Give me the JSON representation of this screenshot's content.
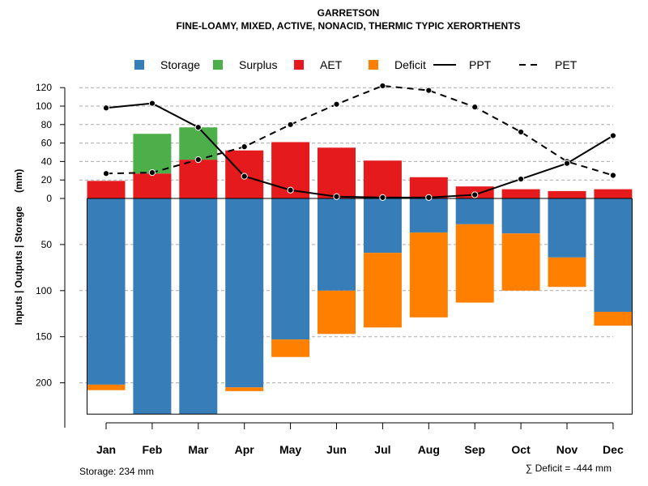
{
  "chart_data": {
    "type": "bar",
    "title": "GARRETSON",
    "subtitle": "FINE-LOAMY, MIXED, ACTIVE, NONACID, THERMIC TYPIC XERORTHENTS",
    "ylabel": "Inputs | Outputs | Storage     (mm)",
    "categories": [
      "Jan",
      "Feb",
      "Mar",
      "Apr",
      "May",
      "Jun",
      "Jul",
      "Aug",
      "Sep",
      "Oct",
      "Nov",
      "Dec"
    ],
    "upper_axis": {
      "range": [
        0,
        130
      ],
      "ticks": [
        0,
        20,
        40,
        60,
        80,
        100,
        120
      ]
    },
    "lower_axis": {
      "range": [
        0,
        240
      ],
      "ticks": [
        50,
        100,
        150,
        200
      ]
    },
    "legend": {
      "position": "top",
      "entries": [
        {
          "label": "Storage",
          "kind": "box",
          "color": "#377EB8"
        },
        {
          "label": "Surplus",
          "kind": "box",
          "color": "#4DAF4A"
        },
        {
          "label": "AET",
          "kind": "box",
          "color": "#E41A1C"
        },
        {
          "label": "Deficit",
          "kind": "box",
          "color": "#FF7F00"
        },
        {
          "label": "PPT",
          "kind": "line",
          "color": "#000000"
        },
        {
          "label": "PET",
          "kind": "dash",
          "color": "#000000"
        }
      ]
    },
    "series": [
      {
        "name": "AET",
        "color": "#E41A1C",
        "values": [
          19,
          27,
          42,
          52,
          61,
          55,
          41,
          23,
          13,
          10,
          8,
          10
        ]
      },
      {
        "name": "Surplus",
        "color": "#4DAF4A",
        "values": [
          0,
          43,
          35,
          0,
          0,
          0,
          0,
          0,
          0,
          0,
          0,
          0
        ]
      },
      {
        "name": "Storage",
        "color": "#377EB8",
        "values": [
          202,
          234,
          234,
          205,
          153,
          100,
          59,
          37,
          28,
          38,
          64,
          123
        ]
      },
      {
        "name": "Deficit",
        "color": "#FF7F00",
        "values": [
          6,
          0,
          0,
          4,
          19,
          47,
          81,
          92,
          85,
          62,
          32,
          15
        ]
      },
      {
        "name": "PPT",
        "color": "#000000",
        "values": [
          98,
          103,
          77,
          24,
          9,
          2,
          1,
          1,
          4,
          21,
          38,
          68
        ]
      },
      {
        "name": "PET",
        "color": "#000000",
        "values": [
          27,
          28,
          42,
          56,
          80,
          102,
          122,
          117,
          99,
          72,
          40,
          25
        ]
      }
    ],
    "max_storage": 234,
    "storage_label": "Storage: 234 mm",
    "deficit_label": "∑ Deficit = -444 mm"
  }
}
